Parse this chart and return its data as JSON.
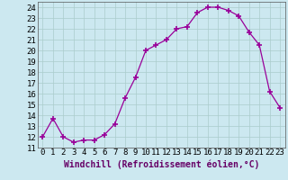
{
  "x": [
    0,
    1,
    2,
    3,
    4,
    5,
    6,
    7,
    8,
    9,
    10,
    11,
    12,
    13,
    14,
    15,
    16,
    17,
    18,
    19,
    20,
    21,
    22,
    23
  ],
  "y": [
    12.0,
    13.7,
    12.0,
    11.5,
    11.7,
    11.7,
    12.2,
    13.2,
    15.6,
    17.5,
    20.0,
    20.5,
    21.0,
    22.0,
    22.2,
    23.5,
    24.0,
    24.0,
    23.7,
    23.2,
    21.7,
    20.5,
    16.2,
    14.7
  ],
  "line_color": "#990099",
  "marker": "+",
  "marker_size": 4,
  "marker_lw": 1.2,
  "bg_color": "#cce8f0",
  "grid_color": "#aacccc",
  "xlabel": "Windchill (Refroidissement éolien,°C)",
  "xlabel_color": "#660066",
  "xlabel_fontsize": 7,
  "tick_fontsize": 6.5,
  "ylim": [
    11,
    24.5
  ],
  "xlim": [
    -0.5,
    23.5
  ],
  "yticks": [
    11,
    12,
    13,
    14,
    15,
    16,
    17,
    18,
    19,
    20,
    21,
    22,
    23,
    24
  ],
  "xticks": [
    0,
    1,
    2,
    3,
    4,
    5,
    6,
    7,
    8,
    9,
    10,
    11,
    12,
    13,
    14,
    15,
    16,
    17,
    18,
    19,
    20,
    21,
    22,
    23
  ]
}
